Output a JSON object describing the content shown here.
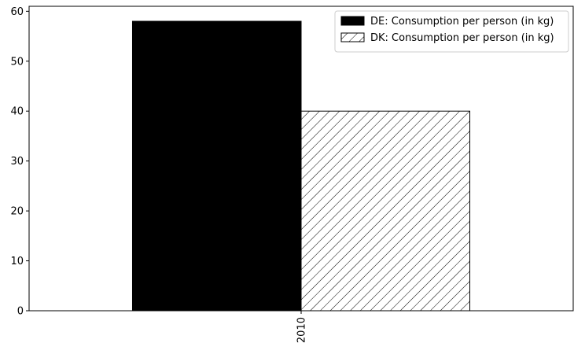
{
  "chart_data": {
    "type": "bar",
    "title": "",
    "xlabel": "",
    "ylabel": "",
    "categories": [
      "2010"
    ],
    "series": [
      {
        "name": "DE: Consumption per person (in kg)",
        "values": [
          58
        ],
        "fill": "#000000",
        "pattern": "solid"
      },
      {
        "name": "DK: Consumption per person (in kg)",
        "values": [
          40
        ],
        "fill": "#ffffff",
        "pattern": "hatch"
      }
    ],
    "ylim": [
      0,
      61
    ],
    "yticks": [
      0,
      10,
      20,
      30,
      40,
      50,
      60
    ],
    "grid": false,
    "legend_position": "top-right"
  }
}
